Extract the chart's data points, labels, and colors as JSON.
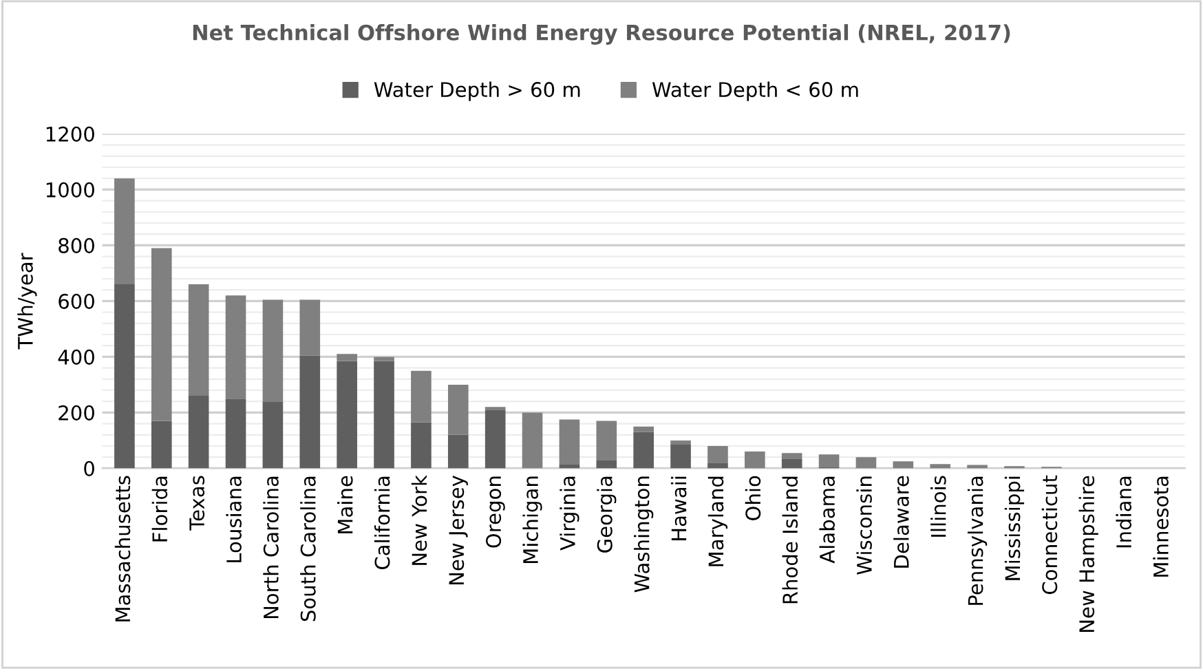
{
  "chart_data": {
    "type": "bar",
    "stacked": true,
    "title": "Net Technical Offshore Wind Energy Resource Potential (NREL, 2017)",
    "ylabel": "TWh/year",
    "categories": [
      "Massachusetts",
      "Florida",
      "Texas",
      "Lousiana",
      "North Carolina",
      "South Carolina",
      "Maine",
      "California",
      "New York",
      "New Jersey",
      "Oregon",
      "Michigan",
      "Virginia",
      "Georgia",
      "Washington",
      "Hawaii",
      "Maryland",
      "Ohio",
      "Rhode Island",
      "Alabama",
      "Wisconsin",
      "Delaware",
      "Illinois",
      "Pennsylvania",
      "Mississippi",
      "Connecticut",
      "New Hampshire",
      "Indiana",
      "Minnesota"
    ],
    "series": [
      {
        "name": "Water Depth > 60 m",
        "color": "#5f5f5f",
        "values": [
          660,
          170,
          260,
          250,
          240,
          405,
          385,
          385,
          165,
          120,
          210,
          0,
          15,
          30,
          130,
          85,
          20,
          0,
          35,
          5,
          0,
          0,
          0,
          0,
          0,
          0,
          0,
          0,
          0
        ]
      },
      {
        "name": "Water Depth < 60 m",
        "color": "#808080",
        "values": [
          380,
          620,
          400,
          370,
          365,
          200,
          25,
          15,
          185,
          180,
          10,
          200,
          160,
          140,
          20,
          15,
          60,
          60,
          20,
          45,
          40,
          25,
          15,
          12,
          8,
          5,
          0,
          0,
          0
        ]
      }
    ],
    "ylim": [
      0,
      1200
    ],
    "yticks": [
      0,
      {
        "value": 40,
        "label": null
      },
      {
        "value": 80,
        "label": null
      },
      {
        "value": 120,
        "label": null
      },
      {
        "value": 160,
        "label": null
      },
      200,
      {
        "value": 240,
        "label": null
      },
      {
        "value": 280,
        "label": null
      },
      {
        "value": 320,
        "label": null
      },
      {
        "value": 360,
        "label": null
      },
      400,
      {
        "value": 440,
        "label": null
      },
      {
        "value": 480,
        "label": null
      },
      {
        "value": 520,
        "label": null
      },
      {
        "value": 560,
        "label": null
      },
      600,
      {
        "value": 640,
        "label": null
      },
      {
        "value": 680,
        "label": null
      },
      {
        "value": 720,
        "label": null
      },
      {
        "value": 760,
        "label": null
      },
      800,
      {
        "value": 840,
        "label": null
      },
      {
        "value": 880,
        "label": null
      },
      {
        "value": 920,
        "label": null
      },
      {
        "value": 960,
        "label": null
      },
      1000,
      {
        "value": 1040,
        "label": null
      },
      {
        "value": 1080,
        "label": null
      },
      {
        "value": 1120,
        "label": null
      },
      {
        "value": 1160,
        "label": null
      },
      1200
    ],
    "grid": "y",
    "legend": "top"
  }
}
